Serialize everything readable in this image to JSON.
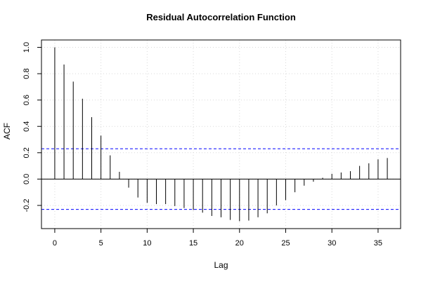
{
  "chart_data": {
    "type": "bar",
    "title": "Residual Autocorrelation Function",
    "xlabel": "Lag",
    "ylabel": "ACF",
    "xlim": [
      -1.44,
      37.44
    ],
    "ylim": [
      -0.376,
      1.056
    ],
    "x_ticks": [
      0,
      5,
      10,
      15,
      20,
      25,
      30,
      35
    ],
    "y_ticks": [
      -0.2,
      0.0,
      0.2,
      0.4,
      0.6,
      0.8,
      1.0
    ],
    "y_tick_labels": [
      "-0.2",
      "0.0",
      "0.2",
      "0.4",
      "0.6",
      "0.8",
      "1.0"
    ],
    "grid": true,
    "confidence_bounds": [
      0.23,
      -0.23
    ],
    "confidence_color": "#0000ff",
    "lags": [
      0,
      1,
      2,
      3,
      4,
      5,
      6,
      7,
      8,
      9,
      10,
      11,
      12,
      13,
      14,
      15,
      16,
      17,
      18,
      19,
      20,
      21,
      22,
      23,
      24,
      25,
      26,
      27,
      28,
      29,
      30,
      31,
      32,
      33,
      34,
      35,
      36
    ],
    "values": [
      1.0,
      0.87,
      0.74,
      0.61,
      0.47,
      0.33,
      0.18,
      0.055,
      -0.065,
      -0.14,
      -0.18,
      -0.19,
      -0.19,
      -0.205,
      -0.22,
      -0.235,
      -0.255,
      -0.28,
      -0.29,
      -0.31,
      -0.32,
      -0.315,
      -0.29,
      -0.26,
      -0.2,
      -0.16,
      -0.1,
      -0.05,
      -0.02,
      0.01,
      0.04,
      0.05,
      0.06,
      0.1,
      0.12,
      0.15,
      0.16
    ]
  }
}
